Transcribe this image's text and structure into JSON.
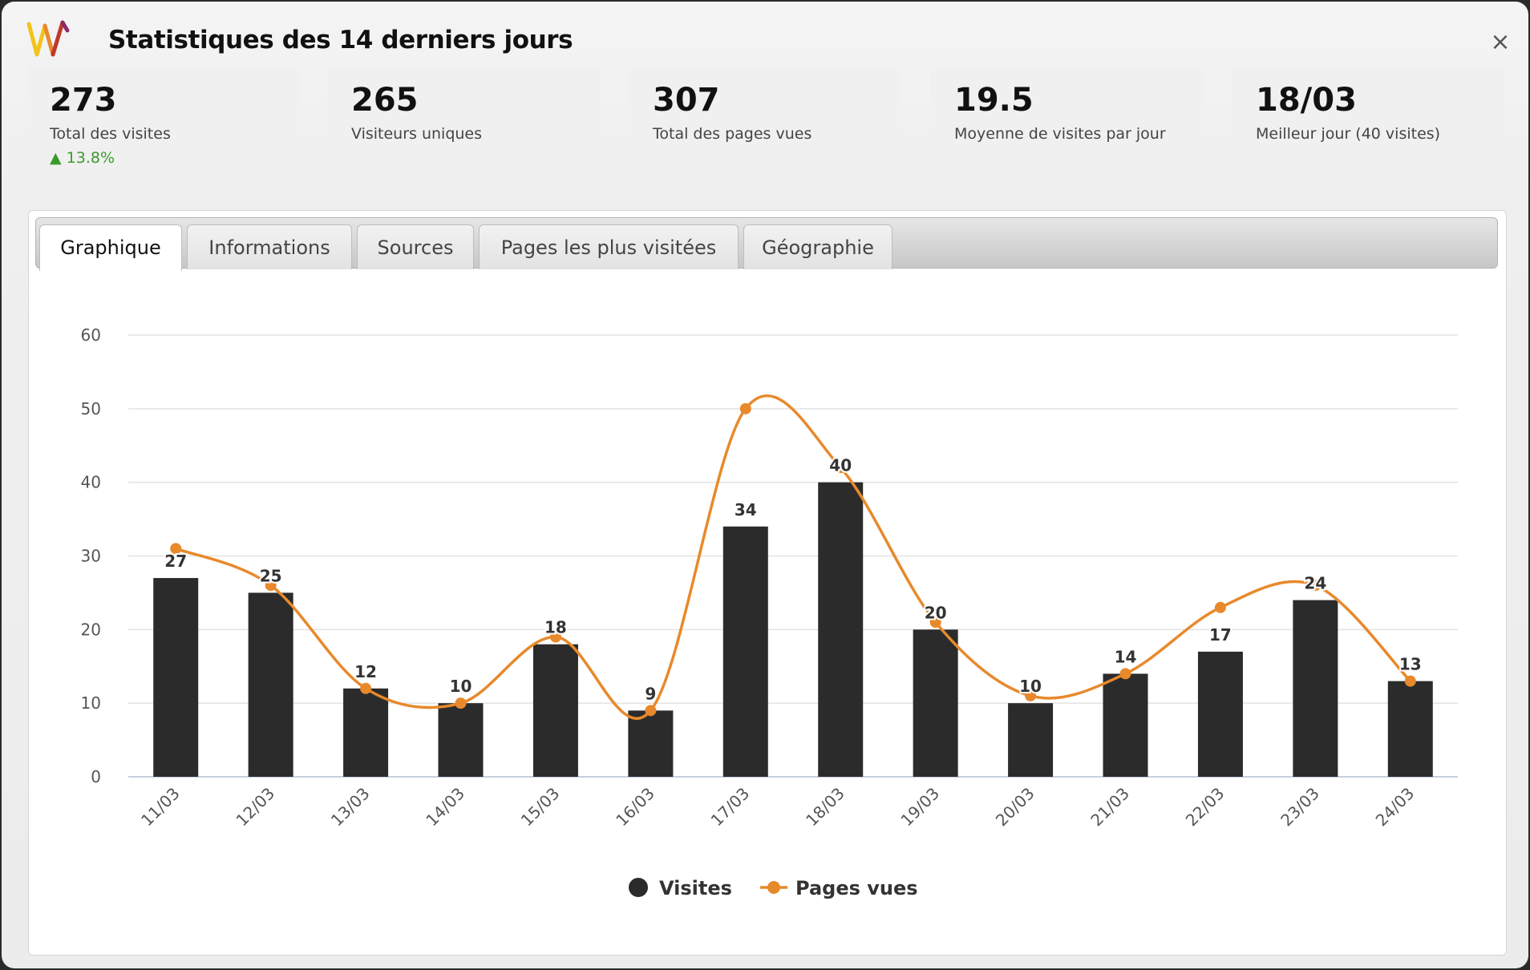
{
  "header": {
    "title": "Statistiques des 14 derniers jours",
    "logo": "W-logo",
    "close_label": "×"
  },
  "stats": [
    {
      "value": "273",
      "label": "Total des visites",
      "trend": "▲ 13.8%",
      "trend_color": "#3c9a2c"
    },
    {
      "value": "265",
      "label": "Visiteurs uniques"
    },
    {
      "value": "307",
      "label": "Total des pages vues"
    },
    {
      "value": "19.5",
      "label": "Moyenne de visites par jour"
    },
    {
      "value": "18/03",
      "label": "Meilleur jour (40 visites)"
    }
  ],
  "tabs": [
    {
      "label": "Graphique",
      "active": true
    },
    {
      "label": "Informations",
      "active": false
    },
    {
      "label": "Sources",
      "active": false
    },
    {
      "label": "Pages les plus visitées",
      "active": false
    },
    {
      "label": "Géographie",
      "active": false
    }
  ],
  "colors": {
    "bar": "#2b2b2b",
    "line": "#e8892c",
    "grid": "#e3e3e3",
    "axis": "#c8d0e0"
  },
  "chart_data": {
    "type": "bar",
    "categories": [
      "11/03",
      "12/03",
      "13/03",
      "14/03",
      "15/03",
      "16/03",
      "17/03",
      "18/03",
      "19/03",
      "20/03",
      "21/03",
      "22/03",
      "23/03",
      "24/03"
    ],
    "series": [
      {
        "name": "Visites",
        "type": "bar",
        "values": [
          27,
          25,
          12,
          10,
          18,
          9,
          34,
          40,
          20,
          10,
          14,
          17,
          24,
          13
        ]
      },
      {
        "name": "Pages vues",
        "type": "line",
        "values": [
          31,
          26,
          12,
          10,
          19,
          9,
          50,
          42,
          21,
          11,
          14,
          23,
          26,
          13
        ]
      }
    ],
    "ylim": [
      0,
      60
    ],
    "yticks": [
      0,
      10,
      20,
      30,
      40,
      50,
      60
    ],
    "grid": true,
    "legend": "bottom-center",
    "data_labels": "Visites"
  }
}
